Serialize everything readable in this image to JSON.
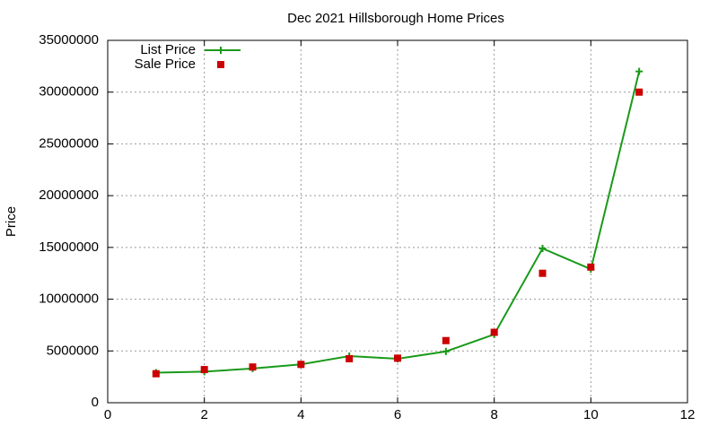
{
  "chart_data": {
    "type": "line",
    "title": "Dec 2021 Hillsborough Home Prices",
    "y_label": "Price",
    "x": [
      1,
      2,
      3,
      4,
      5,
      6,
      7,
      8,
      9,
      10,
      11
    ],
    "series": [
      {
        "name": "List Price",
        "color": "#1a9a1a",
        "line": true,
        "marker": "plus",
        "values": [
          2900000,
          3000000,
          3300000,
          3700000,
          4500000,
          4250000,
          4950000,
          6600000,
          14900000,
          12900000,
          32000000
        ]
      },
      {
        "name": "Sale Price",
        "color": "#cc0000",
        "line": false,
        "marker": "square",
        "values": [
          2800000,
          3200000,
          3450000,
          3700000,
          4250000,
          4300000,
          6000000,
          6800000,
          12500000,
          13100000,
          30000000
        ]
      }
    ],
    "xlim": [
      0,
      12
    ],
    "xticks": [
      0,
      2,
      4,
      6,
      8,
      10,
      12
    ],
    "ylim": [
      0,
      35000000
    ],
    "yticks": [
      0,
      5000000,
      10000000,
      15000000,
      20000000,
      25000000,
      30000000,
      35000000
    ],
    "grid": true,
    "legend": "top-left"
  }
}
